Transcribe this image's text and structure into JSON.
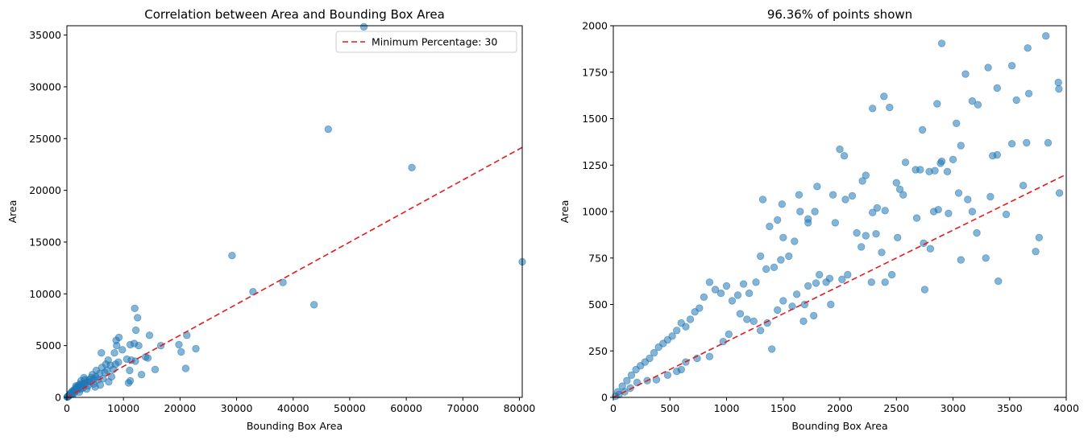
{
  "colors": {
    "points": "#1f77b4",
    "refline": "#e41a1c"
  },
  "chart_data": [
    {
      "type": "scatter",
      "title": "Correlation between Area and Bounding Box Area",
      "xlabel": "Bounding Box Area",
      "ylabel": "Area",
      "xlim": [
        0,
        80500
      ],
      "ylim": [
        0,
        35900
      ],
      "xticks": [
        0,
        10000,
        20000,
        30000,
        40000,
        50000,
        60000,
        70000,
        80000
      ],
      "yticks": [
        0,
        5000,
        10000,
        15000,
        20000,
        25000,
        30000,
        35000
      ],
      "grid": false,
      "legend": {
        "position": "top-right",
        "entries": [
          "Minimum Percentage: 30"
        ]
      },
      "reference_line": {
        "label": "Minimum Percentage: 30",
        "slope": 0.3,
        "style": "dashed"
      },
      "series": [
        {
          "points": [
            [
              52500,
              35800
            ],
            [
              46200,
              25900
            ],
            [
              61000,
              22200
            ],
            [
              29200,
              13700
            ],
            [
              80500,
              13100
            ],
            [
              38200,
              11100
            ],
            [
              32900,
              10200
            ],
            [
              43700,
              8950
            ],
            [
              12000,
              8600
            ],
            [
              12500,
              7700
            ],
            [
              9200,
              5800
            ],
            [
              8700,
              5500
            ],
            [
              11200,
              5100
            ],
            [
              11900,
              5200
            ],
            [
              12700,
              5000
            ],
            [
              8800,
              5000
            ],
            [
              16600,
              5000
            ],
            [
              14600,
              6000
            ],
            [
              12200,
              6500
            ],
            [
              21200,
              6000
            ],
            [
              19800,
              5100
            ],
            [
              22800,
              4700
            ],
            [
              20200,
              4400
            ],
            [
              8400,
              4300
            ],
            [
              6100,
              4300
            ],
            [
              10600,
              3700
            ],
            [
              11400,
              3600
            ],
            [
              12100,
              3500
            ],
            [
              13900,
              3900
            ],
            [
              14300,
              3800
            ],
            [
              9100,
              3400
            ],
            [
              7700,
              3100
            ],
            [
              8200,
              2700
            ],
            [
              7100,
              2600
            ],
            [
              6200,
              2900
            ],
            [
              15600,
              2700
            ],
            [
              21000,
              2800
            ],
            [
              13200,
              2200
            ],
            [
              11100,
              2600
            ],
            [
              10900,
              1400
            ],
            [
              11200,
              1600
            ],
            [
              5800,
              2300
            ],
            [
              5200,
              2600
            ],
            [
              4300,
              1900
            ],
            [
              4700,
              1300
            ],
            [
              3900,
              1700
            ],
            [
              3600,
              1500
            ],
            [
              3200,
              1700
            ],
            [
              2900,
              1300
            ],
            [
              2700,
              1100
            ],
            [
              2500,
              1600
            ],
            [
              2300,
              1300
            ],
            [
              2100,
              1000
            ],
            [
              1900,
              900
            ],
            [
              1700,
              1000
            ],
            [
              1500,
              800
            ],
            [
              1400,
              600
            ],
            [
              1200,
              700
            ],
            [
              1100,
              500
            ],
            [
              1000,
              600
            ],
            [
              900,
              400
            ],
            [
              800,
              500
            ],
            [
              700,
              300
            ],
            [
              600,
              350
            ],
            [
              500,
              250
            ],
            [
              400,
              200
            ],
            [
              350,
              150
            ],
            [
              300,
              120
            ],
            [
              200,
              100
            ],
            [
              150,
              70
            ],
            [
              100,
              50
            ],
            [
              60,
              30
            ],
            [
              3300,
              1400
            ],
            [
              2600,
              1250
            ],
            [
              2400,
              800
            ],
            [
              1800,
              700
            ],
            [
              1600,
              1100
            ],
            [
              2000,
              1150
            ],
            [
              4100,
              1500
            ],
            [
              3000,
              1900
            ],
            [
              5100,
              2000
            ],
            [
              5500,
              1700
            ],
            [
              6400,
              1800
            ],
            [
              7400,
              1500
            ],
            [
              6700,
              2400
            ],
            [
              7900,
              2000
            ],
            [
              8600,
              3200
            ],
            [
              9800,
              4600
            ],
            [
              5000,
              1000
            ],
            [
              4500,
              2200
            ],
            [
              3500,
              800
            ],
            [
              2800,
              900
            ],
            [
              1300,
              400
            ],
            [
              2200,
              500
            ],
            [
              6900,
              3200
            ],
            [
              7300,
              3600
            ],
            [
              5900,
              1200
            ],
            [
              4800,
              1800
            ],
            [
              3700,
              1100
            ],
            [
              1000,
              300
            ]
          ]
        }
      ]
    },
    {
      "type": "scatter",
      "title": "96.36% of points shown",
      "xlabel": "Bounding Box Area",
      "ylabel": "Area",
      "xlim": [
        0,
        4000
      ],
      "ylim": [
        0,
        2000
      ],
      "xticks": [
        0,
        500,
        1000,
        1500,
        2000,
        2500,
        3000,
        3500,
        4000
      ],
      "yticks": [
        0,
        250,
        500,
        750,
        1000,
        1250,
        1500,
        1750,
        2000
      ],
      "grid": false,
      "reference_line": {
        "slope": 0.3,
        "style": "dashed"
      },
      "series": [
        {
          "points": [
            [
              3820,
              1945
            ],
            [
              2900,
              1905
            ],
            [
              3660,
              1880
            ],
            [
              3310,
              1775
            ],
            [
              3520,
              1785
            ],
            [
              3110,
              1740
            ],
            [
              3930,
              1695
            ],
            [
              3935,
              1660
            ],
            [
              3390,
              1665
            ],
            [
              3670,
              1635
            ],
            [
              2390,
              1620
            ],
            [
              2290,
              1555
            ],
            [
              2440,
              1560
            ],
            [
              3560,
              1600
            ],
            [
              3170,
              1595
            ],
            [
              3220,
              1575
            ],
            [
              2860,
              1580
            ],
            [
              3030,
              1475
            ],
            [
              2730,
              1440
            ],
            [
              3840,
              1370
            ],
            [
              3650,
              1370
            ],
            [
              3520,
              1365
            ],
            [
              3070,
              1355
            ],
            [
              2000,
              1335
            ],
            [
              2040,
              1300
            ],
            [
              3390,
              1305
            ],
            [
              3350,
              1300
            ],
            [
              2900,
              1270
            ],
            [
              2890,
              1260
            ],
            [
              2580,
              1265
            ],
            [
              3000,
              1280
            ],
            [
              2710,
              1225
            ],
            [
              2950,
              1215
            ],
            [
              2790,
              1215
            ],
            [
              2840,
              1220
            ],
            [
              2670,
              1225
            ],
            [
              2230,
              1195
            ],
            [
              2500,
              1155
            ],
            [
              2530,
              1120
            ],
            [
              2200,
              1165
            ],
            [
              1640,
              1090
            ],
            [
              1800,
              1135
            ],
            [
              1940,
              1090
            ],
            [
              2050,
              1065
            ],
            [
              1320,
              1065
            ],
            [
              1490,
              1040
            ],
            [
              2830,
              1000
            ],
            [
              2870,
              1010
            ],
            [
              3050,
              1100
            ],
            [
              3130,
              1065
            ],
            [
              3620,
              1140
            ],
            [
              3940,
              1100
            ],
            [
              2960,
              990
            ],
            [
              3330,
              1080
            ],
            [
              3170,
              1000
            ],
            [
              3470,
              985
            ],
            [
              2680,
              965
            ],
            [
              2330,
              1020
            ],
            [
              2290,
              995
            ],
            [
              2560,
              1090
            ],
            [
              2110,
              1085
            ],
            [
              2400,
              1005
            ],
            [
              1650,
              1000
            ],
            [
              1720,
              960
            ],
            [
              1780,
              1000
            ],
            [
              1450,
              955
            ],
            [
              1380,
              920
            ],
            [
              1720,
              940
            ],
            [
              1960,
              940
            ],
            [
              2150,
              885
            ],
            [
              2230,
              870
            ],
            [
              2320,
              880
            ],
            [
              2190,
              810
            ],
            [
              2370,
              780
            ],
            [
              2510,
              860
            ],
            [
              3210,
              885
            ],
            [
              2740,
              830
            ],
            [
              2800,
              800
            ],
            [
              3290,
              750
            ],
            [
              3760,
              860
            ],
            [
              3730,
              785
            ],
            [
              3070,
              740
            ],
            [
              2400,
              620
            ],
            [
              2460,
              660
            ],
            [
              2280,
              620
            ],
            [
              3400,
              625
            ],
            [
              2750,
              580
            ],
            [
              1820,
              660
            ],
            [
              1910,
              640
            ],
            [
              2020,
              635
            ],
            [
              2070,
              660
            ],
            [
              1880,
              620
            ],
            [
              1790,
              615
            ],
            [
              1720,
              600
            ],
            [
              1690,
              500
            ],
            [
              1620,
              555
            ],
            [
              1580,
              490
            ],
            [
              1680,
              410
            ],
            [
              1770,
              440
            ],
            [
              1400,
              260
            ],
            [
              1920,
              500
            ],
            [
              1500,
              520
            ],
            [
              1450,
              470
            ],
            [
              1360,
              400
            ],
            [
              1300,
              360
            ],
            [
              1240,
              410
            ],
            [
              1180,
              420
            ],
            [
              1120,
              450
            ],
            [
              1020,
              340
            ],
            [
              970,
              300
            ],
            [
              850,
              220
            ],
            [
              740,
              210
            ],
            [
              640,
              190
            ],
            [
              600,
              150
            ],
            [
              560,
              140
            ],
            [
              480,
              120
            ],
            [
              380,
              95
            ],
            [
              300,
              90
            ],
            [
              210,
              80
            ],
            [
              150,
              50
            ],
            [
              100,
              30
            ],
            [
              50,
              15
            ],
            [
              20,
              6
            ],
            [
              1500,
              860
            ],
            [
              1600,
              840
            ],
            [
              1550,
              760
            ],
            [
              1480,
              740
            ],
            [
              1420,
              700
            ],
            [
              1350,
              690
            ],
            [
              1300,
              760
            ],
            [
              1260,
              620
            ],
            [
              1200,
              560
            ],
            [
              1150,
              610
            ],
            [
              1100,
              550
            ],
            [
              1050,
              520
            ],
            [
              1000,
              600
            ],
            [
              950,
              560
            ],
            [
              900,
              580
            ],
            [
              850,
              620
            ],
            [
              800,
              540
            ],
            [
              760,
              480
            ],
            [
              720,
              460
            ],
            [
              680,
              420
            ],
            [
              640,
              380
            ],
            [
              600,
              400
            ],
            [
              560,
              360
            ],
            [
              520,
              330
            ],
            [
              480,
              310
            ],
            [
              440,
              290
            ],
            [
              400,
              270
            ],
            [
              360,
              240
            ],
            [
              320,
              210
            ],
            [
              280,
              190
            ],
            [
              240,
              170
            ],
            [
              200,
              150
            ],
            [
              160,
              120
            ],
            [
              120,
              90
            ],
            [
              80,
              60
            ],
            [
              40,
              30
            ]
          ]
        }
      ]
    }
  ]
}
